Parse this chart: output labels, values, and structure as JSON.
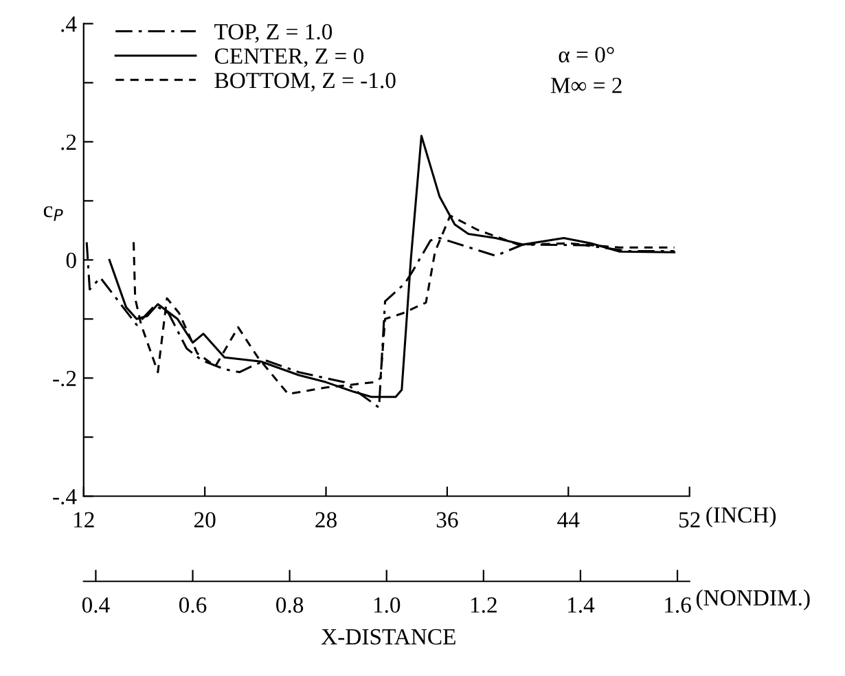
{
  "chart_data": {
    "type": "line",
    "xlabel": "(INCH)",
    "ylabel": "c$_{P}$",
    "x2label": "(NONDIM.)",
    "annotations": [
      "α = 0°",
      "M∞ = 2",
      "X-DISTANCE"
    ],
    "xlim": [
      12,
      52
    ],
    "xticks": [
      12,
      20,
      28,
      36,
      44,
      52
    ],
    "x2lim": [
      0.375,
      1.625
    ],
    "x2ticks": [
      0.4,
      0.6,
      0.8,
      {
        "value": 1.0,
        "label": "1.0"
      },
      1.2,
      1.4,
      1.6
    ],
    "ylim": [
      -0.4,
      0.4
    ],
    "yticks": [
      {
        "value": -0.4,
        "label": "-.4"
      },
      {
        "value": -0.3,
        "label": null
      },
      {
        "value": -0.2,
        "label": "-.2"
      },
      {
        "value": -0.1,
        "label": null
      },
      {
        "value": 0,
        "label": "0"
      },
      {
        "value": 0.1,
        "label": null
      },
      {
        "value": 0.2,
        "label": ".2"
      },
      {
        "value": 0.3,
        "label": null
      },
      {
        "value": 0.4,
        "label": ".4"
      }
    ],
    "grid": false,
    "legend": "top left",
    "marker": "none",
    "series": [
      {
        "name": "TOP, Z = 1.0",
        "color": "#000000",
        "line_style": "dashdot",
        "x": [
          12.2,
          12.4,
          13.1,
          14.0,
          15.5,
          16.7,
          17.6,
          18.8,
          19.8,
          21.3,
          22.3,
          23.1,
          24.0,
          26.2,
          29.2,
          31.5,
          31.9,
          33.2,
          33.7,
          34.9,
          35.5,
          39.2,
          41.0,
          45.0,
          48.0,
          51.0
        ],
        "values": [
          0.03,
          -0.05,
          -0.03,
          -0.06,
          -0.11,
          -0.077,
          -0.09,
          -0.15,
          -0.17,
          -0.185,
          -0.19,
          -0.18,
          -0.17,
          -0.19,
          -0.207,
          -0.25,
          -0.07,
          -0.04,
          -0.02,
          0.033,
          0.037,
          0.007,
          0.026,
          0.025,
          0.015,
          0.015
        ]
      },
      {
        "name": "CENTER, Z = 0",
        "color": "#000000",
        "line_style": "solid",
        "x": [
          13.7,
          14.8,
          15.5,
          16.2,
          16.9,
          18.2,
          19.2,
          19.9,
          21.3,
          23.7,
          26.2,
          28.0,
          29.8,
          31.0,
          32.6,
          33.0,
          33.6,
          34.3,
          35.0,
          35.5,
          36.5,
          37.4,
          39.2,
          41.0,
          43.7,
          45.5,
          47.4,
          51.0
        ],
        "values": [
          0.0,
          -0.08,
          -0.1,
          -0.095,
          -0.075,
          -0.1,
          -0.14,
          -0.125,
          -0.165,
          -0.172,
          -0.195,
          -0.207,
          -0.223,
          -0.232,
          -0.232,
          -0.22,
          0.0,
          0.21,
          0.15,
          0.107,
          0.06,
          0.044,
          0.037,
          0.026,
          0.037,
          0.028,
          0.014,
          0.013
        ]
      },
      {
        "name": "BOTTOM, Z = -1.0",
        "color": "#000000",
        "line_style": "dashed",
        "x": [
          15.3,
          15.4,
          15.8,
          16.9,
          17.5,
          18.3,
          19.5,
          20.7,
          22.2,
          23.5,
          25.5,
          28.0,
          31.2,
          31.6,
          31.9,
          33.1,
          34.6,
          35.2,
          36.2,
          38.0,
          40.7,
          44.0,
          47.4,
          51.0
        ],
        "values": [
          0.03,
          -0.065,
          -0.11,
          -0.19,
          -0.065,
          -0.09,
          -0.158,
          -0.18,
          -0.114,
          -0.165,
          -0.227,
          -0.216,
          -0.207,
          -0.2,
          -0.1,
          -0.09,
          -0.072,
          0.014,
          0.075,
          0.051,
          0.026,
          0.028,
          0.021,
          0.021
        ]
      }
    ]
  }
}
